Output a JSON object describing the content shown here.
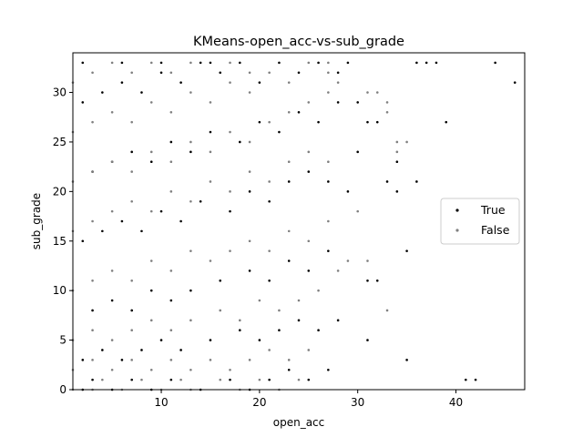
{
  "chart_data": {
    "type": "scatter",
    "title": "KMeans-open_acc-vs-sub_grade",
    "xlabel": "open_acc",
    "ylabel": "sub_grade",
    "xlim": [
      1,
      47
    ],
    "ylim": [
      0,
      34
    ],
    "xticks": [
      10,
      20,
      30,
      40
    ],
    "yticks": [
      0,
      5,
      10,
      15,
      20,
      25,
      30
    ],
    "grid": false,
    "legend_position": "right",
    "series": [
      {
        "name": "True",
        "color": "#000000",
        "points": [
          [
            2,
            0
          ],
          [
            3,
            1
          ],
          [
            5,
            0
          ],
          [
            7,
            1
          ],
          [
            9,
            0
          ],
          [
            11,
            1
          ],
          [
            14,
            0
          ],
          [
            17,
            1
          ],
          [
            19,
            0
          ],
          [
            21,
            1
          ],
          [
            23,
            2
          ],
          [
            25,
            1
          ],
          [
            27,
            2
          ],
          [
            2,
            3
          ],
          [
            4,
            4
          ],
          [
            6,
            3
          ],
          [
            8,
            4
          ],
          [
            10,
            5
          ],
          [
            12,
            4
          ],
          [
            15,
            5
          ],
          [
            18,
            6
          ],
          [
            20,
            5
          ],
          [
            22,
            6
          ],
          [
            24,
            7
          ],
          [
            26,
            6
          ],
          [
            28,
            7
          ],
          [
            3,
            8
          ],
          [
            5,
            9
          ],
          [
            7,
            8
          ],
          [
            9,
            10
          ],
          [
            11,
            9
          ],
          [
            13,
            10
          ],
          [
            16,
            11
          ],
          [
            19,
            12
          ],
          [
            21,
            11
          ],
          [
            23,
            13
          ],
          [
            25,
            12
          ],
          [
            27,
            14
          ],
          [
            2,
            15
          ],
          [
            4,
            16
          ],
          [
            6,
            17
          ],
          [
            8,
            16
          ],
          [
            10,
            18
          ],
          [
            12,
            17
          ],
          [
            14,
            19
          ],
          [
            17,
            18
          ],
          [
            19,
            20
          ],
          [
            21,
            19
          ],
          [
            23,
            21
          ],
          [
            25,
            22
          ],
          [
            27,
            21
          ],
          [
            29,
            20
          ],
          [
            3,
            22
          ],
          [
            5,
            23
          ],
          [
            7,
            24
          ],
          [
            9,
            23
          ],
          [
            11,
            25
          ],
          [
            13,
            24
          ],
          [
            15,
            26
          ],
          [
            18,
            25
          ],
          [
            20,
            27
          ],
          [
            22,
            26
          ],
          [
            24,
            28
          ],
          [
            26,
            27
          ],
          [
            28,
            29
          ],
          [
            2,
            29
          ],
          [
            4,
            30
          ],
          [
            6,
            31
          ],
          [
            8,
            30
          ],
          [
            10,
            32
          ],
          [
            12,
            31
          ],
          [
            14,
            33
          ],
          [
            16,
            32
          ],
          [
            18,
            33
          ],
          [
            20,
            31
          ],
          [
            22,
            33
          ],
          [
            24,
            32
          ],
          [
            26,
            33
          ],
          [
            28,
            32
          ],
          [
            2,
            33
          ],
          [
            6,
            33
          ],
          [
            10,
            33
          ],
          [
            15,
            33
          ],
          [
            29,
            33
          ],
          [
            30,
            24
          ],
          [
            30,
            29
          ],
          [
            31,
            5
          ],
          [
            31,
            11
          ],
          [
            31,
            27
          ],
          [
            32,
            11
          ],
          [
            32,
            27
          ],
          [
            33,
            21
          ],
          [
            34,
            20
          ],
          [
            34,
            23
          ],
          [
            35,
            3
          ],
          [
            35,
            14
          ],
          [
            36,
            21
          ],
          [
            36,
            33
          ],
          [
            37,
            33
          ],
          [
            38,
            33
          ],
          [
            39,
            27
          ],
          [
            41,
            1
          ],
          [
            42,
            1
          ],
          [
            44,
            33
          ],
          [
            46,
            31
          ]
        ]
      },
      {
        "name": "False",
        "color": "#808080",
        "points": [
          [
            1,
            0
          ],
          [
            3,
            0
          ],
          [
            4,
            1
          ],
          [
            6,
            0
          ],
          [
            8,
            1
          ],
          [
            10,
            0
          ],
          [
            12,
            1
          ],
          [
            13,
            0
          ],
          [
            16,
            1
          ],
          [
            18,
            0
          ],
          [
            20,
            1
          ],
          [
            22,
            0
          ],
          [
            24,
            1
          ],
          [
            1,
            2
          ],
          [
            3,
            3
          ],
          [
            5,
            2
          ],
          [
            7,
            3
          ],
          [
            9,
            2
          ],
          [
            11,
            3
          ],
          [
            13,
            2
          ],
          [
            15,
            3
          ],
          [
            17,
            2
          ],
          [
            19,
            3
          ],
          [
            21,
            4
          ],
          [
            23,
            3
          ],
          [
            25,
            4
          ],
          [
            1,
            5
          ],
          [
            3,
            6
          ],
          [
            5,
            5
          ],
          [
            7,
            6
          ],
          [
            9,
            7
          ],
          [
            11,
            6
          ],
          [
            13,
            7
          ],
          [
            16,
            8
          ],
          [
            18,
            7
          ],
          [
            20,
            9
          ],
          [
            22,
            8
          ],
          [
            24,
            9
          ],
          [
            26,
            10
          ],
          [
            1,
            10
          ],
          [
            3,
            11
          ],
          [
            5,
            12
          ],
          [
            7,
            11
          ],
          [
            9,
            13
          ],
          [
            11,
            12
          ],
          [
            13,
            14
          ],
          [
            15,
            13
          ],
          [
            17,
            14
          ],
          [
            19,
            15
          ],
          [
            21,
            14
          ],
          [
            23,
            16
          ],
          [
            25,
            15
          ],
          [
            27,
            17
          ],
          [
            1,
            16
          ],
          [
            3,
            17
          ],
          [
            5,
            18
          ],
          [
            7,
            19
          ],
          [
            9,
            18
          ],
          [
            11,
            20
          ],
          [
            13,
            19
          ],
          [
            15,
            21
          ],
          [
            17,
            20
          ],
          [
            19,
            22
          ],
          [
            21,
            21
          ],
          [
            23,
            23
          ],
          [
            25,
            24
          ],
          [
            27,
            23
          ],
          [
            1,
            21
          ],
          [
            3,
            22
          ],
          [
            5,
            23
          ],
          [
            7,
            22
          ],
          [
            9,
            24
          ],
          [
            11,
            23
          ],
          [
            13,
            25
          ],
          [
            15,
            24
          ],
          [
            17,
            26
          ],
          [
            19,
            25
          ],
          [
            21,
            27
          ],
          [
            23,
            28
          ],
          [
            25,
            29
          ],
          [
            27,
            30
          ],
          [
            1,
            26
          ],
          [
            3,
            27
          ],
          [
            5,
            28
          ],
          [
            7,
            27
          ],
          [
            9,
            29
          ],
          [
            11,
            28
          ],
          [
            13,
            30
          ],
          [
            15,
            29
          ],
          [
            17,
            31
          ],
          [
            19,
            30
          ],
          [
            21,
            32
          ],
          [
            23,
            31
          ],
          [
            25,
            33
          ],
          [
            27,
            32
          ],
          [
            1,
            31
          ],
          [
            3,
            32
          ],
          [
            5,
            33
          ],
          [
            7,
            32
          ],
          [
            9,
            33
          ],
          [
            11,
            32
          ],
          [
            13,
            33
          ],
          [
            17,
            33
          ],
          [
            19,
            32
          ],
          [
            28,
            12
          ],
          [
            29,
            13
          ],
          [
            30,
            18
          ],
          [
            31,
            13
          ],
          [
            31,
            30
          ],
          [
            32,
            30
          ],
          [
            33,
            8
          ],
          [
            33,
            28
          ],
          [
            33,
            29
          ],
          [
            34,
            24
          ],
          [
            34,
            25
          ],
          [
            35,
            25
          ],
          [
            27,
            33
          ],
          [
            28,
            31
          ]
        ]
      }
    ]
  }
}
